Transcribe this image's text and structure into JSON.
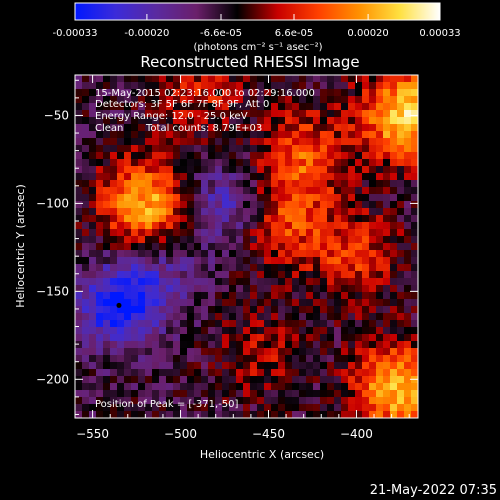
{
  "colorbar": {
    "ticks": [
      "-0.00033",
      "-0.00020",
      "-6.6e-05",
      "6.6e-05",
      "0.00020",
      "0.00033"
    ],
    "tick_values": [
      -0.00033,
      -0.0002,
      -6.6e-05,
      6.6e-05,
      0.0002,
      0.00033
    ],
    "range": [
      -0.00033,
      0.00033
    ],
    "unit_label": "(photons cm⁻² s⁻¹ asec⁻²)",
    "colors": [
      "#0018ff",
      "#3b2bd9",
      "#5a2aa0",
      "#6a1f6a",
      "#000000",
      "#c80000",
      "#ff4000",
      "#ff9000",
      "#ffe040",
      "#ffffff"
    ]
  },
  "chart_data": {
    "type": "heatmap",
    "title": "Reconstructed RHESSI Image",
    "xlabel": "Heliocentric X (arcsec)",
    "ylabel": "Heliocentric Y (arcsec)",
    "xlim": [
      -560,
      -365
    ],
    "ylim": [
      -222,
      -27
    ],
    "xticks": [
      -550,
      -500,
      -450,
      -400
    ],
    "yticks": [
      -50,
      -100,
      -150,
      -200
    ],
    "xtick_labels": [
      "−550",
      "−500",
      "−450",
      "−400"
    ],
    "ytick_labels": [
      "−50",
      "−100",
      "−150",
      "−200"
    ],
    "value_range": [
      -0.00033,
      0.00033
    ],
    "bright_sources": [
      {
        "x": -371,
        "y": -50,
        "peak": 0.00033
      },
      {
        "x": -520,
        "y": -100,
        "peak": 0.00028
      },
      {
        "x": -376,
        "y": -205,
        "peak": 0.0003
      },
      {
        "x": -430,
        "y": -72,
        "peak": 0.00018
      },
      {
        "x": -440,
        "y": -110,
        "peak": 0.00016
      },
      {
        "x": -400,
        "y": -130,
        "peak": 0.00015
      },
      {
        "x": -490,
        "y": -35,
        "peak": 0.00012
      },
      {
        "x": -455,
        "y": -185,
        "peak": 0.0001
      }
    ],
    "dark_sources": [
      {
        "x": -535,
        "y": -158,
        "peak": -0.00033
      },
      {
        "x": -475,
        "y": -100,
        "peak": -0.00018
      },
      {
        "x": -510,
        "y": -140,
        "peak": -0.00012
      }
    ],
    "annotations": [
      "15-May-2015 02:23:16.000 to 02:29:16.000",
      "Detectors: 3F 5F 6F 7F 8F 9F, Att 0",
      "Energy Range: 12.0 - 25.0 keV",
      "Clean",
      "Total counts: 8.79E+03",
      "Position of Peak = [-371,-50]"
    ]
  },
  "footer_timestamp": "21-May-2022 07:35"
}
